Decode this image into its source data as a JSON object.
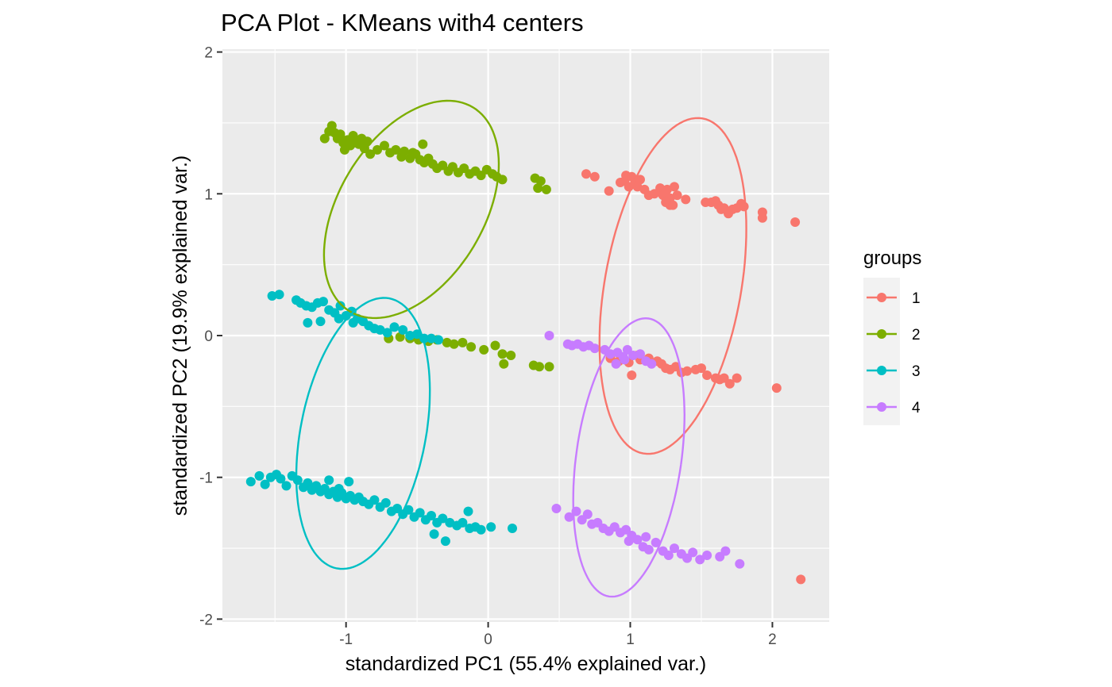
{
  "chart_data": {
    "type": "scatter",
    "title": "PCA Plot - KMeans with4 centers",
    "xlabel": "standardized PC1 (55.4% explained var.)",
    "ylabel": "standardized PC2 (19.9% explained var.)",
    "xlim": [
      -1.87,
      2.4
    ],
    "ylim": [
      -2.02,
      2.02
    ],
    "x_ticks": [
      -1,
      0,
      1,
      2
    ],
    "x_tick_labels": [
      "-1",
      "0",
      "1",
      "2"
    ],
    "y_ticks": [
      -2,
      -1,
      0,
      1,
      2
    ],
    "y_tick_labels": [
      "-2",
      "-1",
      "0",
      "1",
      "2"
    ],
    "grid": true,
    "legend": {
      "title": "groups",
      "position": "right"
    },
    "series": [
      {
        "name": "1",
        "color": "#F8766D",
        "ellipse": {
          "cx": 1.3,
          "cy": 0.35,
          "rx": 0.48,
          "ry": 1.2,
          "angle_deg": -10
        },
        "points": [
          [
            0.69,
            1.14
          ],
          [
            0.75,
            1.12
          ],
          [
            0.85,
            1.02
          ],
          [
            0.93,
            1.08
          ],
          [
            0.96,
            1.09
          ],
          [
            0.97,
            1.13
          ],
          [
            0.99,
            1.05
          ],
          [
            1.01,
            1.12
          ],
          [
            1.03,
            1.07
          ],
          [
            1.05,
            1.05
          ],
          [
            1.07,
            1.1
          ],
          [
            1.1,
            1.03
          ],
          [
            1.13,
            0.99
          ],
          [
            1.17,
            1.0
          ],
          [
            1.21,
            1.04
          ],
          [
            1.23,
            0.99
          ],
          [
            1.26,
            1.03
          ],
          [
            1.28,
            0.97
          ],
          [
            1.31,
            1.05
          ],
          [
            1.33,
            0.99
          ],
          [
            1.25,
            0.94
          ],
          [
            1.28,
            0.92
          ],
          [
            1.3,
            0.92
          ],
          [
            1.39,
            0.96
          ],
          [
            1.53,
            0.94
          ],
          [
            1.57,
            0.94
          ],
          [
            1.6,
            0.95
          ],
          [
            1.62,
            0.92
          ],
          [
            1.64,
            0.89
          ],
          [
            1.66,
            0.9
          ],
          [
            1.69,
            0.86
          ],
          [
            1.72,
            0.89
          ],
          [
            1.75,
            0.9
          ],
          [
            1.78,
            0.93
          ],
          [
            1.8,
            0.91
          ],
          [
            1.93,
            0.87
          ],
          [
            1.93,
            0.83
          ],
          [
            2.16,
            0.8
          ],
          [
            0.86,
            -0.16
          ],
          [
            0.92,
            -0.18
          ],
          [
            0.99,
            -0.19
          ],
          [
            1.05,
            -0.14
          ],
          [
            1.07,
            -0.17
          ],
          [
            1.13,
            -0.16
          ],
          [
            1.19,
            -0.18
          ],
          [
            1.22,
            -0.2
          ],
          [
            1.25,
            -0.23
          ],
          [
            1.28,
            -0.24
          ],
          [
            1.32,
            -0.22
          ],
          [
            1.36,
            -0.26
          ],
          [
            1.4,
            -0.25
          ],
          [
            1.46,
            -0.24
          ],
          [
            1.5,
            -0.23
          ],
          [
            1.54,
            -0.28
          ],
          [
            1.6,
            -0.3
          ],
          [
            1.63,
            -0.31
          ],
          [
            1.66,
            -0.3
          ],
          [
            1.7,
            -0.34
          ],
          [
            1.75,
            -0.3
          ],
          [
            1.01,
            -0.28
          ],
          [
            2.03,
            -0.37
          ],
          [
            2.2,
            -1.72
          ]
        ]
      },
      {
        "name": "2",
        "color": "#7CAE00",
        "ellipse": {
          "cx": -0.54,
          "cy": 0.89,
          "rx": 0.51,
          "ry": 0.84,
          "angle_deg": -31
        },
        "points": [
          [
            -1.15,
            1.39
          ],
          [
            -1.12,
            1.44
          ],
          [
            -1.1,
            1.48
          ],
          [
            -1.08,
            1.43
          ],
          [
            -1.06,
            1.39
          ],
          [
            -1.04,
            1.42
          ],
          [
            -1.02,
            1.36
          ],
          [
            -1.01,
            1.31
          ],
          [
            -0.99,
            1.38
          ],
          [
            -0.97,
            1.34
          ],
          [
            -0.95,
            1.41
          ],
          [
            -0.93,
            1.36
          ],
          [
            -0.91,
            1.35
          ],
          [
            -0.89,
            1.39
          ],
          [
            -0.87,
            1.32
          ],
          [
            -0.85,
            1.37
          ],
          [
            -0.83,
            1.28
          ],
          [
            -0.78,
            1.31
          ],
          [
            -0.73,
            1.34
          ],
          [
            -0.69,
            1.29
          ],
          [
            -0.65,
            1.31
          ],
          [
            -0.61,
            1.26
          ],
          [
            -0.59,
            1.3
          ],
          [
            -0.55,
            1.25
          ],
          [
            -0.51,
            1.28
          ],
          [
            -0.48,
            1.24
          ],
          [
            -0.45,
            1.22
          ],
          [
            -0.42,
            1.25
          ],
          [
            -0.39,
            1.21
          ],
          [
            -0.36,
            1.18
          ],
          [
            -0.32,
            1.2
          ],
          [
            -0.28,
            1.16
          ],
          [
            -0.25,
            1.19
          ],
          [
            -0.21,
            1.15
          ],
          [
            -0.17,
            1.18
          ],
          [
            -0.13,
            1.14
          ],
          [
            -0.09,
            1.16
          ],
          [
            -0.05,
            1.13
          ],
          [
            -0.01,
            1.17
          ],
          [
            0.03,
            1.14
          ],
          [
            0.06,
            1.12
          ],
          [
            0.1,
            1.1
          ],
          [
            0.33,
            1.11
          ],
          [
            0.37,
            1.09
          ],
          [
            0.35,
            1.04
          ],
          [
            0.41,
            1.03
          ],
          [
            -0.46,
            1.35
          ],
          [
            -0.53,
            1.29
          ],
          [
            -0.7,
            -0.02
          ],
          [
            -0.62,
            -0.01
          ],
          [
            -0.55,
            -0.02
          ],
          [
            -0.49,
            -0.03
          ],
          [
            -0.42,
            -0.04
          ],
          [
            -0.36,
            -0.03
          ],
          [
            -0.29,
            -0.05
          ],
          [
            -0.24,
            -0.06
          ],
          [
            -0.18,
            -0.05
          ],
          [
            -0.12,
            -0.08
          ],
          [
            -0.03,
            -0.1
          ],
          [
            0.05,
            -0.07
          ],
          [
            0.1,
            -0.13
          ],
          [
            0.16,
            -0.14
          ],
          [
            0.32,
            -0.21
          ],
          [
            0.36,
            -0.22
          ],
          [
            0.43,
            -0.22
          ],
          [
            0.11,
            -0.2
          ]
        ]
      },
      {
        "name": "3",
        "color": "#00BFC4",
        "ellipse": {
          "cx": -0.88,
          "cy": -0.69,
          "rx": 0.44,
          "ry": 0.97,
          "angle_deg": -11
        },
        "points": [
          [
            -1.52,
            0.28
          ],
          [
            -1.47,
            0.29
          ],
          [
            -1.35,
            0.25
          ],
          [
            -1.32,
            0.23
          ],
          [
            -1.28,
            0.21
          ],
          [
            -1.24,
            0.2
          ],
          [
            -1.2,
            0.23
          ],
          [
            -1.16,
            0.24
          ],
          [
            -1.12,
            0.18
          ],
          [
            -1.08,
            0.16
          ],
          [
            -1.04,
            0.21
          ],
          [
            -1.0,
            0.14
          ],
          [
            -0.96,
            0.17
          ],
          [
            -0.92,
            0.12
          ],
          [
            -0.88,
            0.1
          ],
          [
            -0.84,
            0.07
          ],
          [
            -0.8,
            0.05
          ],
          [
            -0.76,
            0.04
          ],
          [
            -0.71,
            0.02
          ],
          [
            -0.66,
            0.06
          ],
          [
            -0.6,
            0.04
          ],
          [
            -0.55,
            0.0
          ],
          [
            -0.5,
            0.01
          ],
          [
            -0.45,
            -0.02
          ],
          [
            -0.4,
            -0.02
          ],
          [
            -0.35,
            -0.03
          ],
          [
            -1.27,
            0.09
          ],
          [
            -1.18,
            0.1
          ],
          [
            -1.05,
            0.12
          ],
          [
            -0.95,
            0.09
          ],
          [
            -1.67,
            -1.03
          ],
          [
            -1.61,
            -0.99
          ],
          [
            -1.57,
            -1.05
          ],
          [
            -1.53,
            -1.0
          ],
          [
            -1.49,
            -0.98
          ],
          [
            -1.46,
            -1.01
          ],
          [
            -1.42,
            -1.06
          ],
          [
            -1.38,
            -0.99
          ],
          [
            -1.34,
            -1.02
          ],
          [
            -1.3,
            -1.07
          ],
          [
            -1.27,
            -1.04
          ],
          [
            -1.24,
            -1.09
          ],
          [
            -1.21,
            -1.06
          ],
          [
            -1.18,
            -1.1
          ],
          [
            -1.15,
            -1.08
          ],
          [
            -1.12,
            -1.12
          ],
          [
            -1.09,
            -1.1
          ],
          [
            -1.06,
            -1.14
          ],
          [
            -1.03,
            -1.11
          ],
          [
            -1.0,
            -1.15
          ],
          [
            -0.97,
            -1.13
          ],
          [
            -0.94,
            -1.16
          ],
          [
            -0.91,
            -1.14
          ],
          [
            -0.88,
            -1.17
          ],
          [
            -0.84,
            -1.19
          ],
          [
            -0.8,
            -1.16
          ],
          [
            -0.76,
            -1.21
          ],
          [
            -0.72,
            -1.18
          ],
          [
            -0.68,
            -1.24
          ],
          [
            -0.64,
            -1.22
          ],
          [
            -0.6,
            -1.26
          ],
          [
            -0.56,
            -1.23
          ],
          [
            -0.52,
            -1.28
          ],
          [
            -0.48,
            -1.25
          ],
          [
            -0.44,
            -1.3
          ],
          [
            -0.4,
            -1.27
          ],
          [
            -0.36,
            -1.32
          ],
          [
            -0.32,
            -1.29
          ],
          [
            -0.27,
            -1.32
          ],
          [
            -0.22,
            -1.34
          ],
          [
            -0.18,
            -1.32
          ],
          [
            -0.13,
            -1.36
          ],
          [
            -0.09,
            -1.35
          ],
          [
            -0.05,
            -1.37
          ],
          [
            0.17,
            -1.36
          ],
          [
            0.02,
            -1.35
          ],
          [
            -0.14,
            -1.24
          ],
          [
            -0.3,
            -1.45
          ],
          [
            -0.38,
            -1.4
          ],
          [
            -1.12,
            -1.02
          ],
          [
            -1.05,
            -1.08
          ],
          [
            -0.98,
            -1.03
          ]
        ]
      },
      {
        "name": "4",
        "color": "#C77CFF",
        "ellipse": {
          "cx": 0.99,
          "cy": -0.86,
          "rx": 0.37,
          "ry": 0.99,
          "angle_deg": -8
        },
        "points": [
          [
            0.43,
            0.0
          ],
          [
            0.56,
            -0.06
          ],
          [
            0.59,
            -0.07
          ],
          [
            0.63,
            -0.06
          ],
          [
            0.67,
            -0.08
          ],
          [
            0.71,
            -0.07
          ],
          [
            0.75,
            -0.09
          ],
          [
            0.82,
            -0.1
          ],
          [
            0.86,
            -0.13
          ],
          [
            0.91,
            -0.12
          ],
          [
            0.95,
            -0.15
          ],
          [
            0.98,
            -0.1
          ],
          [
            1.02,
            -0.14
          ],
          [
            1.07,
            -0.13
          ],
          [
            1.11,
            -0.18
          ],
          [
            1.15,
            -0.2
          ],
          [
            0.9,
            -0.2
          ],
          [
            0.96,
            -0.17
          ],
          [
            0.48,
            -1.22
          ],
          [
            0.57,
            -1.28
          ],
          [
            0.62,
            -1.24
          ],
          [
            0.66,
            -1.3
          ],
          [
            0.7,
            -1.26
          ],
          [
            0.73,
            -1.33
          ],
          [
            0.77,
            -1.32
          ],
          [
            0.81,
            -1.36
          ],
          [
            0.85,
            -1.38
          ],
          [
            0.89,
            -1.35
          ],
          [
            0.93,
            -1.39
          ],
          [
            0.97,
            -1.37
          ],
          [
            1.01,
            -1.41
          ],
          [
            1.05,
            -1.44
          ],
          [
            1.09,
            -1.49
          ],
          [
            1.13,
            -1.51
          ],
          [
            1.18,
            -1.46
          ],
          [
            1.23,
            -1.52
          ],
          [
            1.27,
            -1.55
          ],
          [
            1.31,
            -1.5
          ],
          [
            1.36,
            -1.54
          ],
          [
            1.4,
            -1.57
          ],
          [
            1.44,
            -1.53
          ],
          [
            1.49,
            -1.58
          ],
          [
            1.54,
            -1.55
          ],
          [
            1.63,
            -1.56
          ],
          [
            1.67,
            -1.52
          ],
          [
            1.77,
            -1.61
          ],
          [
            0.99,
            -1.45
          ],
          [
            1.11,
            -1.42
          ]
        ]
      }
    ]
  }
}
